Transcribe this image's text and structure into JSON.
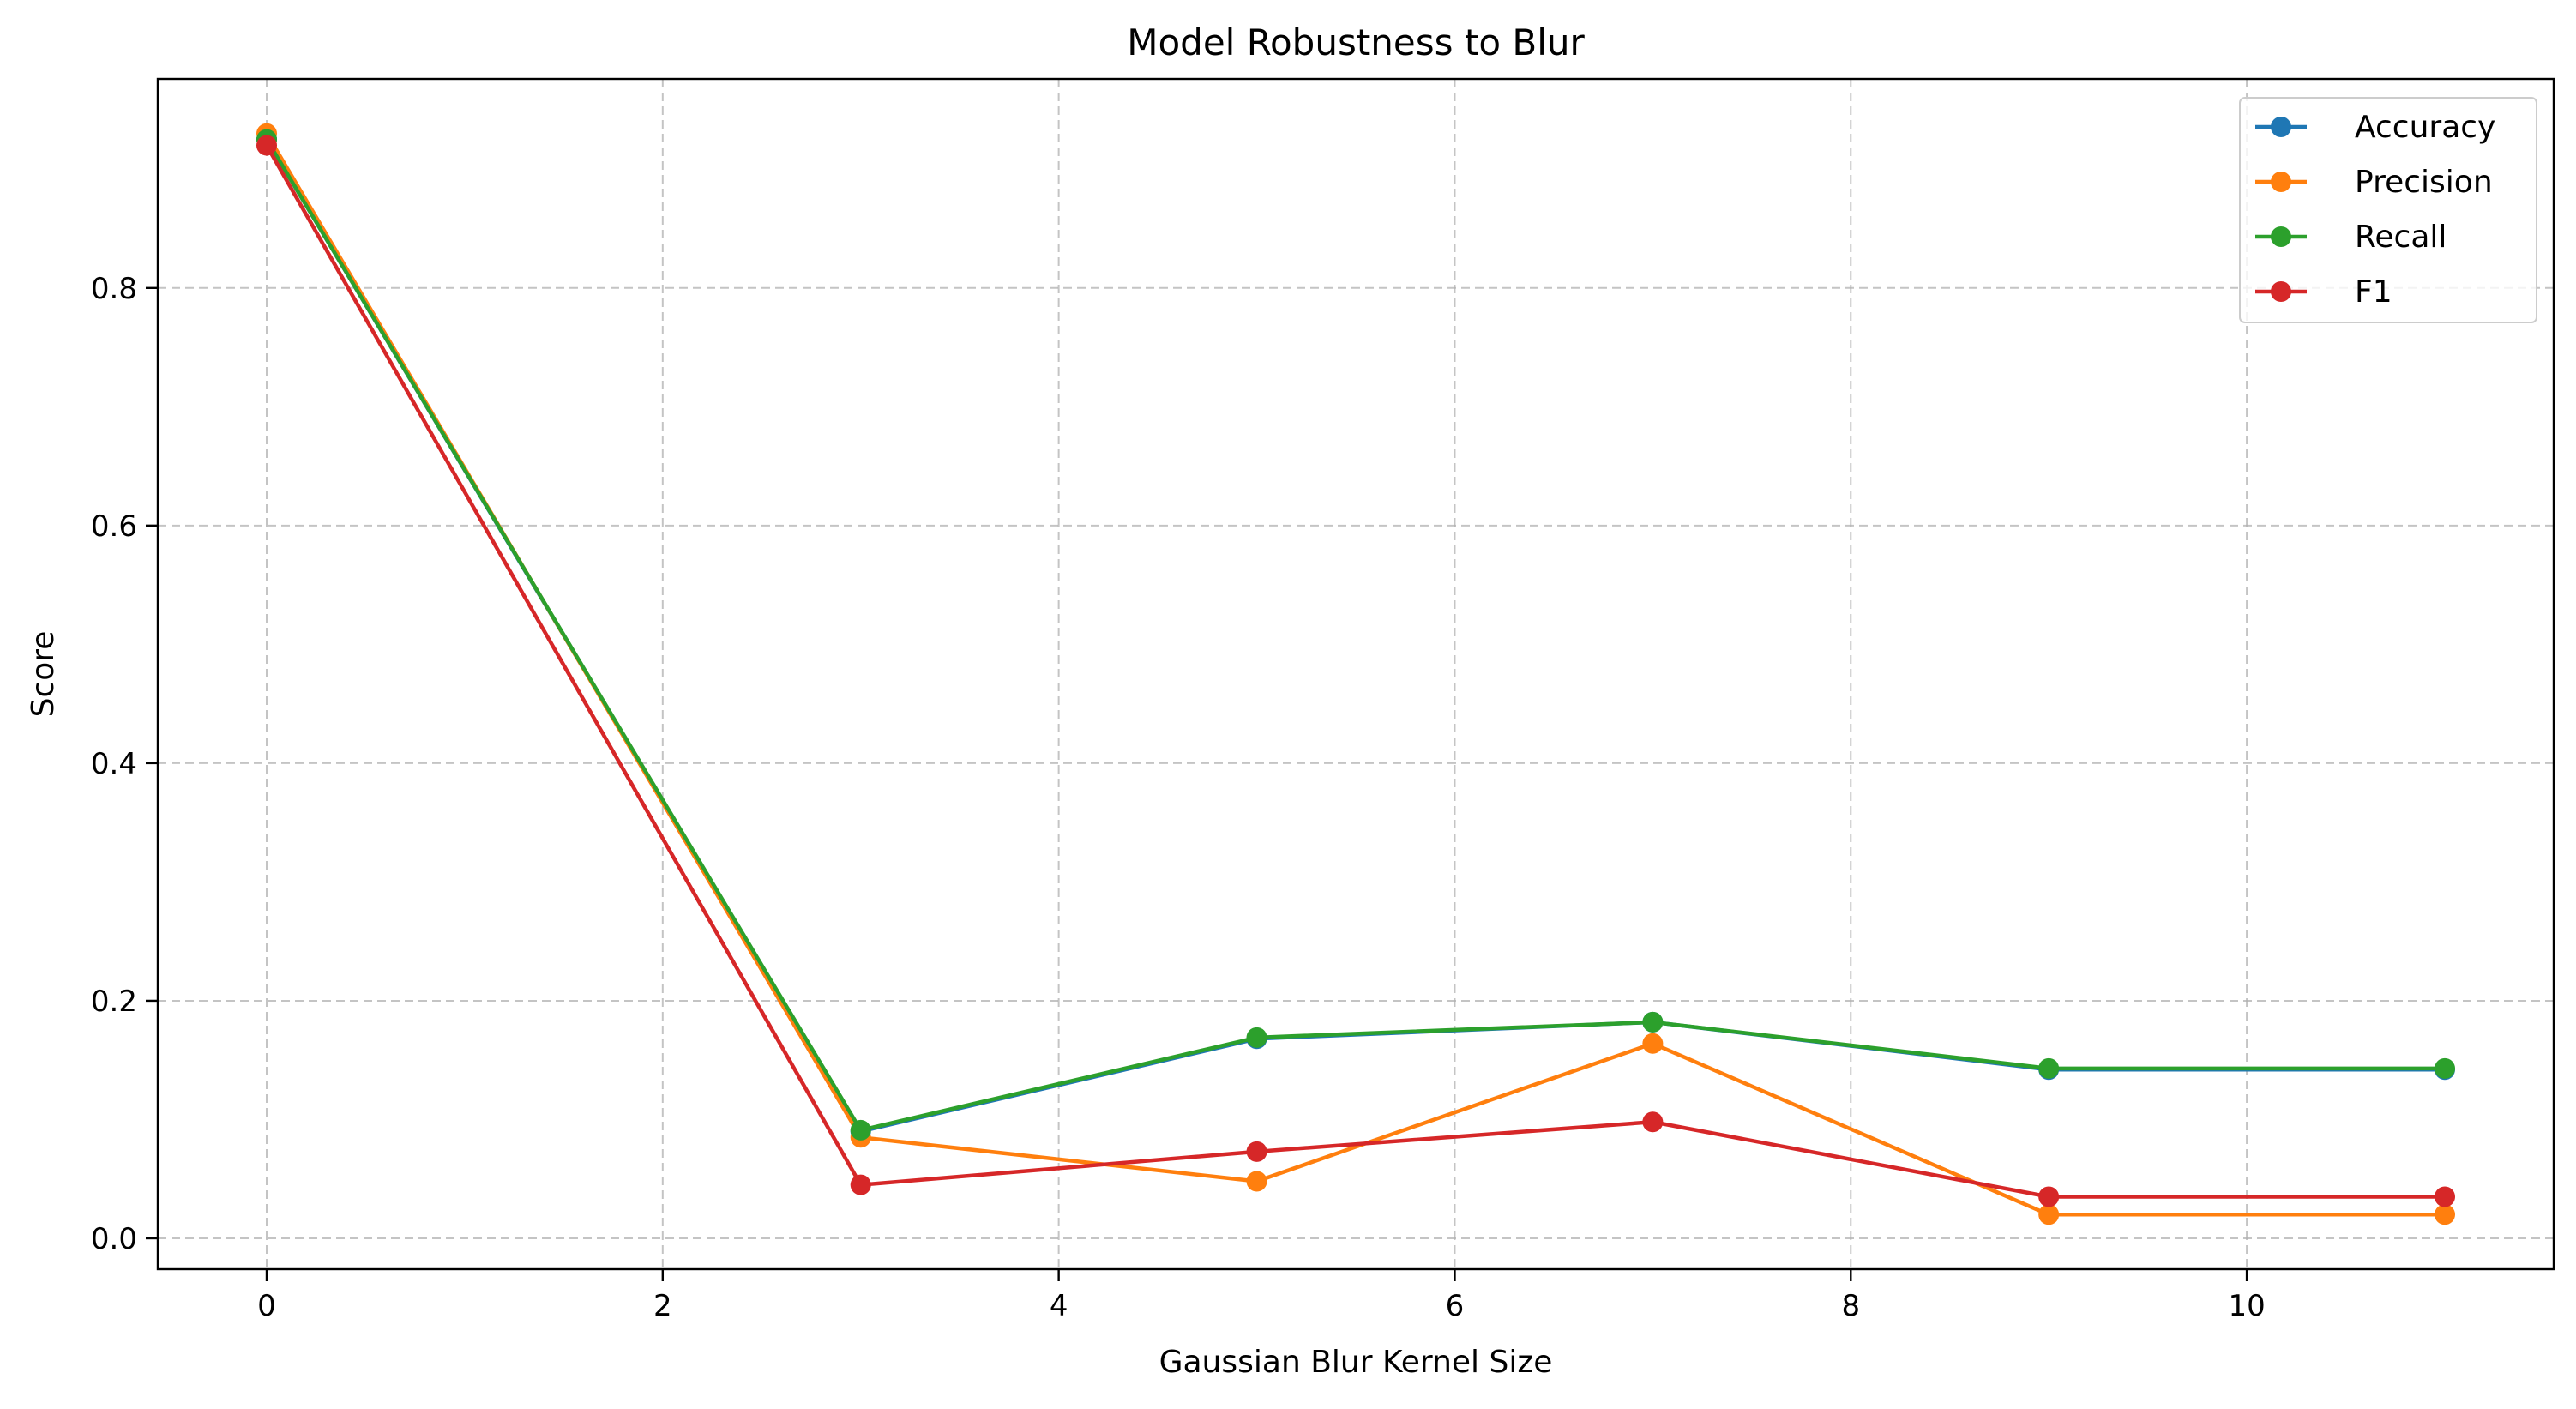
{
  "chart_data": {
    "type": "line",
    "title": "Model Robustness to Blur",
    "xlabel": "Gaussian Blur Kernel Size",
    "ylabel": "Score",
    "xlim": [
      -0.55,
      11.55
    ],
    "ylim": [
      -0.026,
      0.976
    ],
    "x_ticks": [
      0,
      2,
      4,
      6,
      8,
      10
    ],
    "x_tick_labels": [
      "0",
      "2",
      "4",
      "6",
      "8",
      "10"
    ],
    "y_ticks": [
      0.0,
      0.2,
      0.4,
      0.6,
      0.8
    ],
    "y_tick_labels": [
      "0.0",
      "0.2",
      "0.4",
      "0.6",
      "0.8"
    ],
    "grid": true,
    "legend_position": "top-right",
    "x": [
      0,
      3,
      5,
      7,
      9,
      11
    ],
    "series": [
      {
        "name": "Accuracy",
        "color": "#1f77b4",
        "values": [
          0.925,
          0.09,
          0.168,
          0.182,
          0.142,
          0.142
        ]
      },
      {
        "name": "Precision",
        "color": "#ff7f0e",
        "values": [
          0.93,
          0.085,
          0.048,
          0.164,
          0.02,
          0.02
        ]
      },
      {
        "name": "Recall",
        "color": "#2ca02c",
        "values": [
          0.925,
          0.091,
          0.169,
          0.182,
          0.143,
          0.143
        ]
      },
      {
        "name": "F1",
        "color": "#d62728",
        "values": [
          0.92,
          0.045,
          0.073,
          0.098,
          0.035,
          0.035
        ]
      }
    ]
  }
}
